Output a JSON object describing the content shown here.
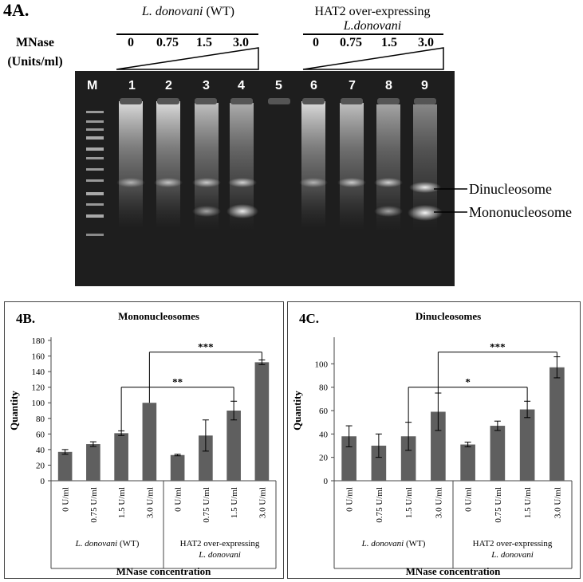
{
  "figure": {
    "panel_a_label": "4A.",
    "mnase_label_line1": "MNase",
    "mnase_label_line2": "(Units/ml)",
    "group_wt_prefix": "L. donovani",
    "group_wt_suffix": " (WT)",
    "group_hat2_line1": "HAT2 over-expressing",
    "group_hat2_line2": "L.donovani",
    "concentrations": [
      "0",
      "0.75",
      "1.5",
      "3.0"
    ],
    "lanes": [
      "M",
      "1",
      "2",
      "3",
      "4",
      "5",
      "6",
      "7",
      "8",
      "9"
    ],
    "band_labels": {
      "dinucleosome": "Dinucleosome",
      "mononucleosome": "Mononucleosome"
    }
  },
  "chart_data": [
    {
      "type": "bar",
      "panel_label": "4B.",
      "title": "Mononucleosomes",
      "ylabel": "Quantity",
      "xlabel": "MNase concentration",
      "categories": [
        "0 U/ml",
        "0.75 U/ml",
        "1.5 U/ml",
        "3.0 U/ml",
        "0 U/ml",
        "0.75 U/ml",
        "1.5 U/ml",
        "3.0 U/ml"
      ],
      "values": [
        37,
        47,
        61,
        100,
        33,
        58,
        90,
        152
      ],
      "errors": [
        3,
        3,
        3,
        0,
        1,
        20,
        12,
        3
      ],
      "ylim": [
        0,
        180
      ],
      "yticks": [
        0,
        20,
        40,
        60,
        80,
        100,
        120,
        140,
        160,
        180
      ],
      "groups": [
        {
          "label_italic": "L. donovani",
          "label_plain": " (WT)",
          "label2": ""
        },
        {
          "label_italic": "",
          "label_plain": "HAT2 over-expressing",
          "label2": "L. donovani"
        }
      ],
      "significance": [
        {
          "from": 2,
          "to": 6,
          "label": "**",
          "y": 120
        },
        {
          "from": 3,
          "to": 7,
          "label": "***",
          "y": 165
        }
      ],
      "bar_color": "#5f5f5f"
    },
    {
      "type": "bar",
      "panel_label": "4C.",
      "title": "Dinucleosomes",
      "ylabel": "Quantity",
      "xlabel": "MNase concentration",
      "categories": [
        "0 U/ml",
        "0.75 U/ml",
        "1.5 U/ml",
        "3.0 U/ml",
        "0 U/ml",
        "0.75 U/ml",
        "1.5 U/ml",
        "3.0 U/ml"
      ],
      "values": [
        38,
        30,
        38,
        59,
        31,
        47,
        61,
        97
      ],
      "errors": [
        9,
        10,
        12,
        16,
        2,
        4,
        7,
        9
      ],
      "ylim": [
        0,
        120
      ],
      "yticks": [
        0,
        20,
        40,
        60,
        80,
        100
      ],
      "groups": [
        {
          "label_italic": "L. donovani",
          "label_plain": " (WT)",
          "label2": ""
        },
        {
          "label_italic": "",
          "label_plain": "HAT2 over-expressing",
          "label2": "L. donovani"
        }
      ],
      "significance": [
        {
          "from": 2,
          "to": 6,
          "label": "*",
          "y": 80
        },
        {
          "from": 3,
          "to": 7,
          "label": "***",
          "y": 110
        }
      ],
      "bar_color": "#5f5f5f"
    }
  ]
}
